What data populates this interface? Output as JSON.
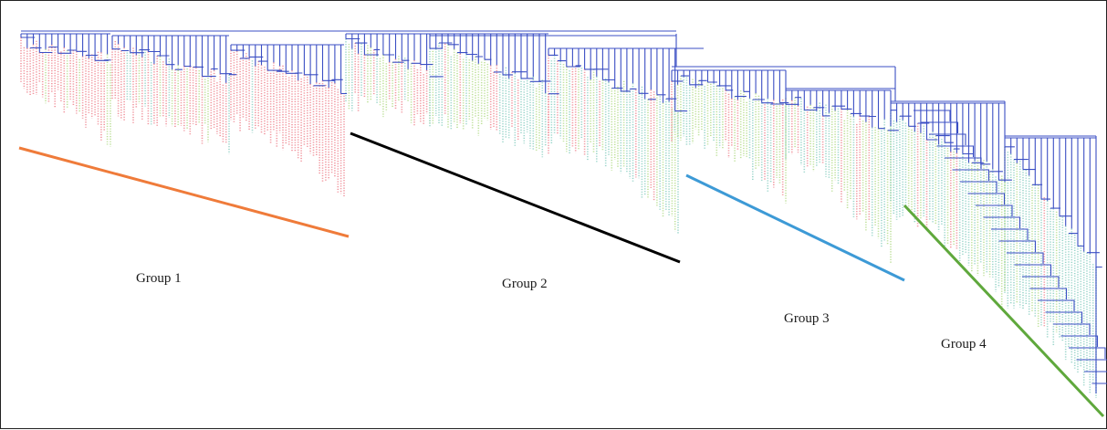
{
  "figure": {
    "type": "dendrogram",
    "branch_color": "#3b4fc4",
    "tip_colors": {
      "red": "#f08a93",
      "green": "#b7dd8e",
      "teal": "#8fd0c4"
    }
  },
  "groups": [
    {
      "label": "Group 1",
      "line_color": "#ef7b3a",
      "dominant_tips": "red"
    },
    {
      "label": "Group 2",
      "line_color": "#000000",
      "dominant_tips": "green-teal"
    },
    {
      "label": "Group 3",
      "line_color": "#3d9ad6",
      "dominant_tips": "mixed"
    },
    {
      "label": "Group 4",
      "line_color": "#5fa83c",
      "dominant_tips": "teal"
    }
  ]
}
